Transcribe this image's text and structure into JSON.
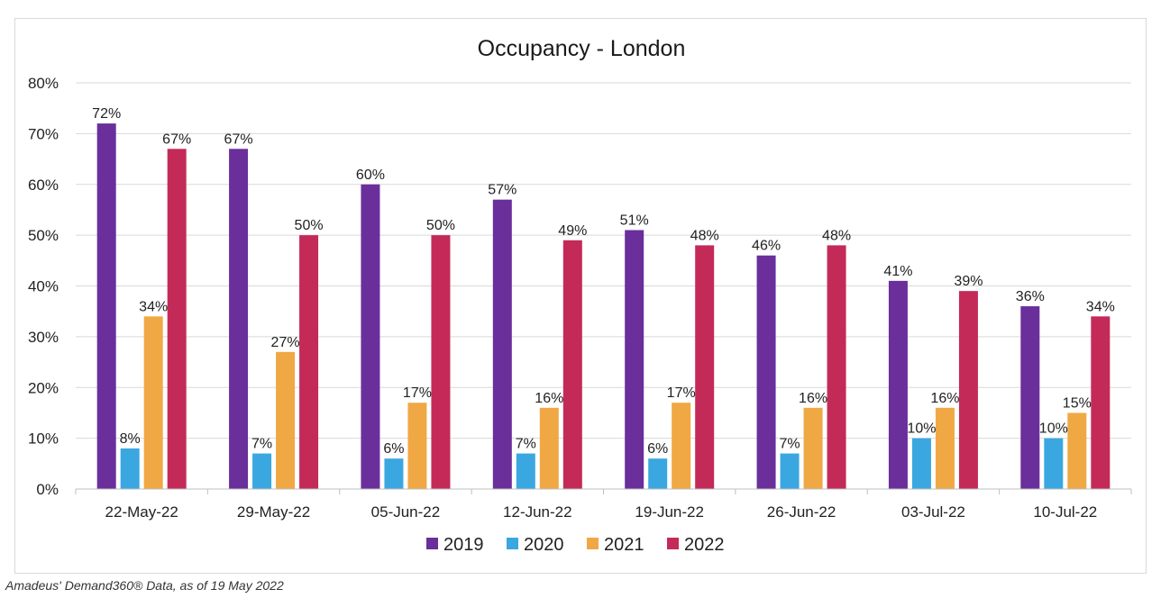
{
  "chart_data": {
    "type": "bar",
    "title": "Occupancy - London",
    "categories": [
      "22-May-22",
      "29-May-22",
      "05-Jun-22",
      "12-Jun-22",
      "19-Jun-22",
      "26-Jun-22",
      "03-Jul-22",
      "10-Jul-22"
    ],
    "series": [
      {
        "name": "2019",
        "color": "#6a2f9b",
        "values": [
          72,
          67,
          60,
          57,
          51,
          46,
          41,
          36
        ],
        "labels": [
          "72%",
          "67%",
          "60%",
          "57%",
          "51%",
          "46%",
          "41%",
          "36%"
        ]
      },
      {
        "name": "2020",
        "color": "#3ba7e0",
        "values": [
          8,
          7,
          6,
          7,
          6,
          7,
          10,
          10
        ],
        "labels": [
          "8%",
          "7%",
          "6%",
          "7%",
          "6%",
          "7%",
          "10%",
          "10%"
        ]
      },
      {
        "name": "2021",
        "color": "#f0a845",
        "values": [
          34,
          27,
          17,
          16,
          17,
          16,
          16,
          15
        ],
        "labels": [
          "34%",
          "27%",
          "17%",
          "16%",
          "17%",
          "16%",
          "16%",
          "15%"
        ]
      },
      {
        "name": "2022",
        "color": "#c42a58",
        "values": [
          67,
          50,
          50,
          49,
          48,
          48,
          39,
          34
        ],
        "labels": [
          "67%",
          "50%",
          "50%",
          "49%",
          "48%",
          "48%",
          "39%",
          "34%"
        ]
      }
    ],
    "ylim": [
      0,
      80
    ],
    "yticks": [
      "0%",
      "10%",
      "20%",
      "30%",
      "40%",
      "50%",
      "60%",
      "70%",
      "80%"
    ],
    "ytick_values": [
      0,
      10,
      20,
      30,
      40,
      50,
      60,
      70,
      80
    ],
    "grid": true,
    "legend": "bottom",
    "xlabel": "",
    "ylabel": ""
  },
  "source": "Amadeus' Demand360® Data, as of 19 May 2022"
}
